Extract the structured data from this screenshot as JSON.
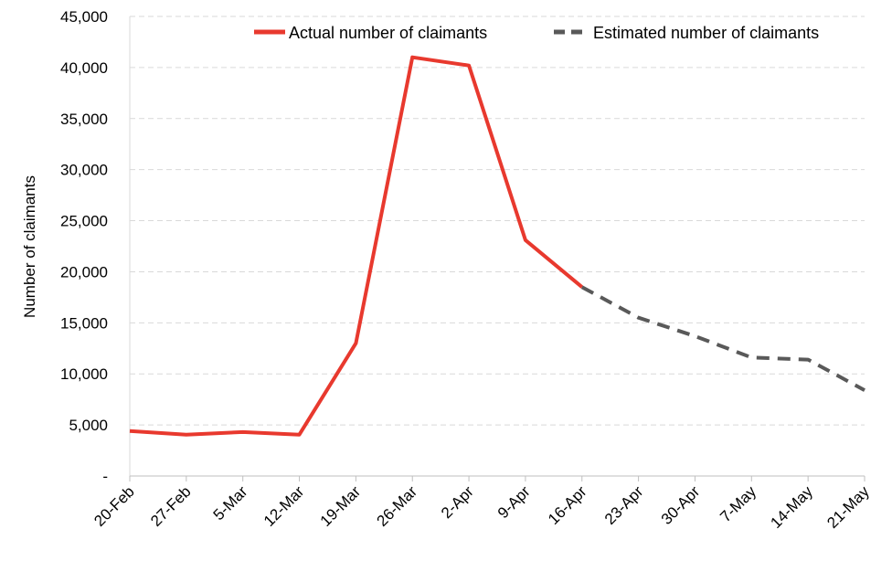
{
  "chart_data": {
    "type": "line",
    "ylabel": "Number  of claimants",
    "xlabel": "",
    "ylim": [
      0,
      45000
    ],
    "y_ticks": [
      0,
      5000,
      10000,
      15000,
      20000,
      25000,
      30000,
      35000,
      40000,
      45000
    ],
    "y_tick_labels": [
      "-",
      "5,000",
      "10,000",
      "15,000",
      "20,000",
      "25,000",
      "30,000",
      "35,000",
      "40,000",
      "45,000"
    ],
    "categories": [
      "20-Feb",
      "27-Feb",
      "5-Mar",
      "12-Mar",
      "19-Mar",
      "26-Mar",
      "2-Apr",
      "9-Apr",
      "16-Apr",
      "23-Apr",
      "30-Apr",
      "7-May",
      "14-May",
      "21-May"
    ],
    "series": [
      {
        "name": "Actual number of claimants",
        "color": "#e8392e",
        "style": "solid",
        "values": [
          4400,
          4050,
          4300,
          4050,
          13000,
          41000,
          40200,
          23100,
          18500,
          null,
          null,
          null,
          null,
          null
        ]
      },
      {
        "name": "Estimated number of claimants",
        "color": "#595959",
        "style": "dashed",
        "values": [
          null,
          null,
          null,
          null,
          null,
          null,
          null,
          null,
          18500,
          15500,
          13700,
          11600,
          11400,
          8400
        ]
      }
    ],
    "grid": "horizontal",
    "legend_position": "top-right"
  }
}
